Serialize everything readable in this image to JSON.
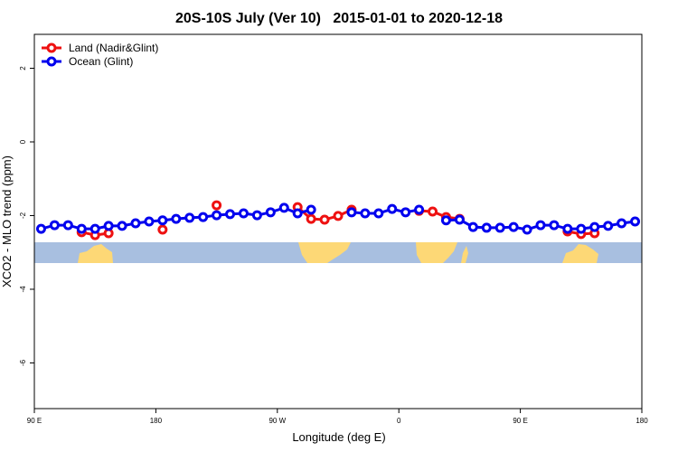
{
  "chart_data": {
    "type": "line",
    "title": "20S-10S July (Ver 10)   2015-01-01 to 2020-12-18",
    "xlabel": "Longitude (deg E)",
    "ylabel": "XCO2 - MLO trend (ppm)",
    "x": [
      95,
      105,
      115,
      125,
      135,
      145,
      155,
      165,
      175,
      185,
      195,
      205,
      215,
      225,
      235,
      245,
      255,
      265,
      275,
      285,
      295,
      305,
      315,
      325,
      335,
      345,
      355,
      365,
      375,
      385,
      395,
      405,
      415,
      425,
      435,
      445,
      455,
      465,
      475,
      485,
      495,
      505,
      515,
      525,
      535
    ],
    "series": [
      {
        "name": "Land (Nadir&Glint)",
        "color": "#ee1111",
        "values": [
          null,
          null,
          null,
          -2.45,
          -2.53,
          -2.48,
          null,
          null,
          null,
          -2.38,
          null,
          null,
          null,
          -1.72,
          null,
          null,
          null,
          null,
          null,
          -1.77,
          -2.09,
          -2.11,
          -2.01,
          -1.84,
          null,
          null,
          null,
          null,
          -1.87,
          -1.89,
          -2.04,
          -2.09,
          null,
          null,
          null,
          null,
          null,
          null,
          null,
          -2.43,
          -2.5,
          -2.48,
          null,
          null,
          null
        ]
      },
      {
        "name": "Ocean (Glint)",
        "color": "#0000ee",
        "values": [
          -2.36,
          -2.26,
          -2.26,
          -2.36,
          -2.36,
          -2.28,
          -2.28,
          -2.21,
          -2.16,
          -2.13,
          -2.09,
          -2.06,
          -2.04,
          -1.99,
          -1.96,
          -1.94,
          -1.99,
          -1.91,
          -1.79,
          -1.94,
          -1.84,
          null,
          null,
          -1.91,
          -1.94,
          -1.94,
          -1.82,
          -1.91,
          -1.84,
          null,
          -2.13,
          -2.11,
          -2.31,
          -2.33,
          -2.33,
          -2.31,
          -2.38,
          -2.26,
          -2.26,
          -2.36,
          -2.36,
          -2.31,
          -2.28,
          -2.21,
          -2.16
        ]
      }
    ],
    "xlim": [
      90,
      540
    ],
    "xticks": [
      {
        "value": 90,
        "label": "90 E"
      },
      {
        "value": 180,
        "label": "180"
      },
      {
        "value": 270,
        "label": "90 W"
      },
      {
        "value": 360,
        "label": "0"
      },
      {
        "value": 450,
        "label": "90 E"
      },
      {
        "value": 540,
        "label": "180"
      }
    ],
    "ylim": [
      -7.24,
      2.92
    ],
    "yticks": [
      -6,
      -4,
      -2,
      0,
      2
    ],
    "legend": "top-left"
  }
}
